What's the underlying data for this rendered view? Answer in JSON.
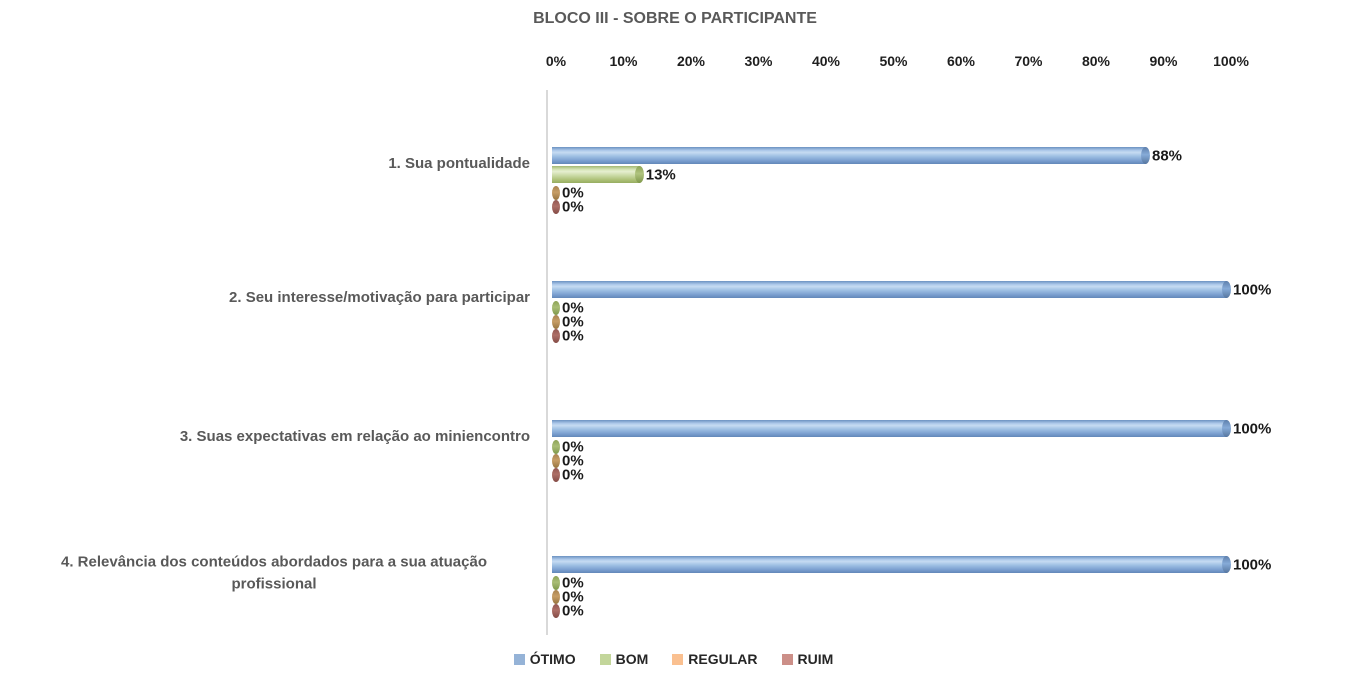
{
  "chart_data": {
    "type": "bar",
    "orientation": "horizontal",
    "bar_style": "3d-cylinder",
    "title": "BLOCO III - SOBRE O PARTICIPANTE",
    "categories": [
      "1. Sua pontualidade",
      "2. Seu interesse/motivação para participar",
      "3. Suas expectativas em relação ao miniencontro",
      "4. Relevância dos conteúdos abordados para a sua atuação profissional"
    ],
    "series": [
      {
        "name": "ÓTIMO",
        "legend_color": "#95b3d7",
        "values": [
          88,
          100,
          100,
          100
        ]
      },
      {
        "name": "BOM",
        "legend_color": "#c3d69b",
        "values": [
          13,
          0,
          0,
          0
        ]
      },
      {
        "name": "REGULAR",
        "legend_color": "#fac090",
        "values": [
          0,
          0,
          0,
          0
        ]
      },
      {
        "name": "RUIM",
        "legend_color": "#cc8f88",
        "values": [
          0,
          0,
          0,
          0
        ]
      }
    ],
    "data_labels": [
      [
        "88%",
        "13%",
        "0%",
        "0%"
      ],
      [
        "100%",
        "0%",
        "0%",
        "0%"
      ],
      [
        "100%",
        "0%",
        "0%",
        "0%"
      ],
      [
        "100%",
        "0%",
        "0%",
        "0%"
      ]
    ],
    "x_ticks": [
      "0%",
      "10%",
      "20%",
      "30%",
      "40%",
      "50%",
      "60%",
      "70%",
      "80%",
      "90%",
      "100%"
    ],
    "xlim": [
      0,
      100
    ],
    "grid": false,
    "legend_position": "bottom"
  }
}
